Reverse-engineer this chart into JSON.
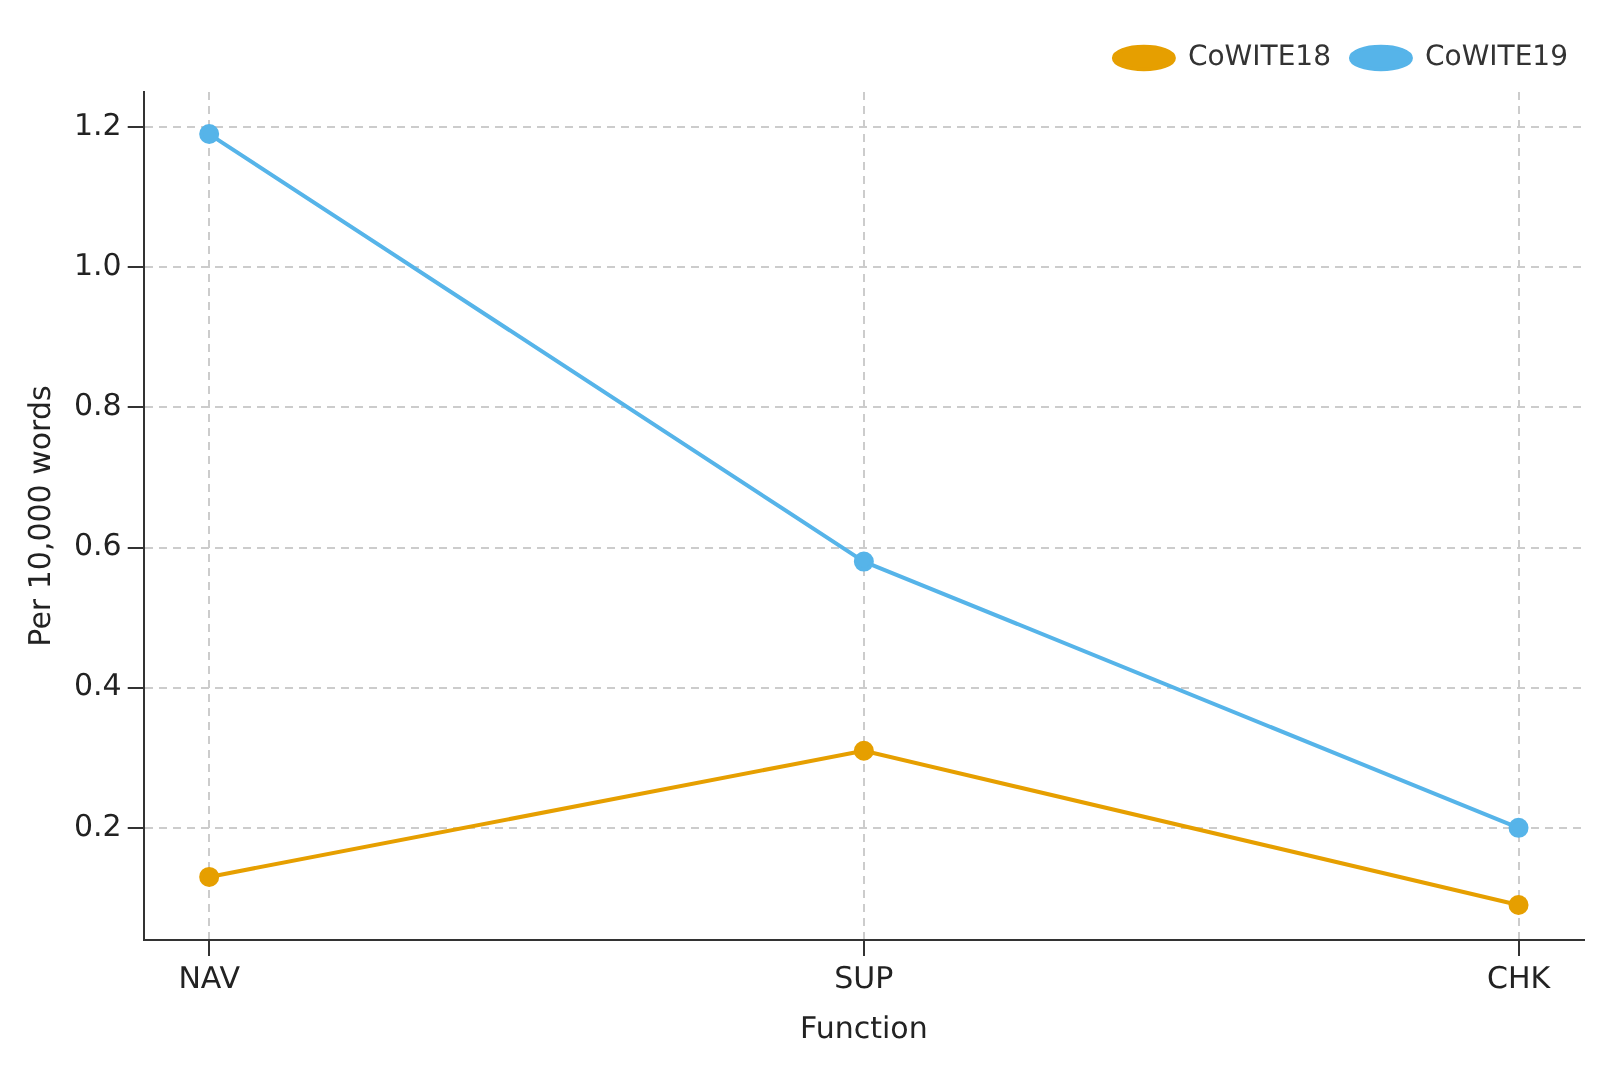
{
  "chart_data": {
    "type": "line",
    "xlabel": "Function",
    "ylabel": "Per 10,000 words",
    "categories": [
      "NAV",
      "SUP",
      "CHK"
    ],
    "series": [
      {
        "name": "CoWITE18",
        "color": "#e69f00",
        "values": [
          0.13,
          0.31,
          0.09
        ]
      },
      {
        "name": "CoWITE19",
        "color": "#56b4e9",
        "values": [
          1.19,
          0.58,
          0.2
        ]
      }
    ],
    "ylim": [
      0.04,
      1.25
    ],
    "yticks": [
      0.2,
      0.4,
      0.6,
      0.8,
      {
        "value": 1,
        "label": "1.0"
      },
      1.2
    ],
    "grid": true,
    "legend": "top right",
    "marker": "circle",
    "line_style": "solid"
  }
}
